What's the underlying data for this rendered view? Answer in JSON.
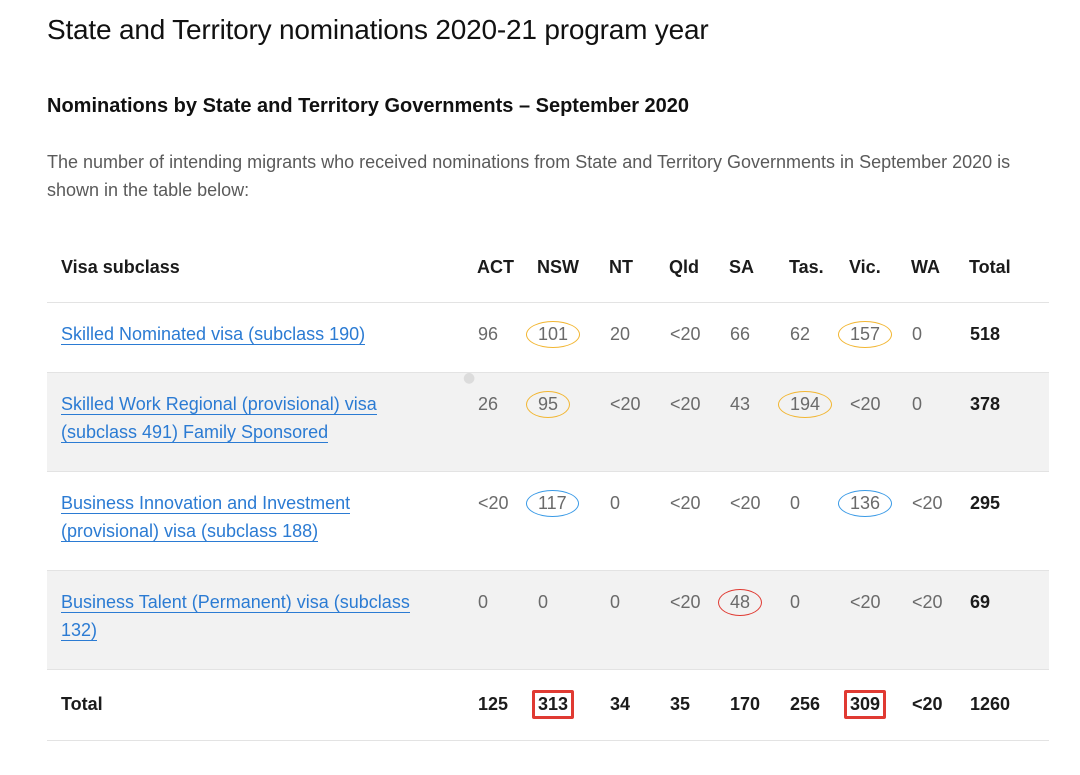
{
  "page_title": "State and Territory nominations 2020-21 program year",
  "section_title": "Nominations by State and Territory Governments – September 2020",
  "intro_text": "The number of intending migrants who received nominations from State and Territory Governments in September 2020 is shown in the table below:",
  "colors": {
    "link": "#2b7bd3",
    "mark_yellow": "#f2b632",
    "mark_blue": "#3a9ae6",
    "mark_red": "#e03a32",
    "row_shade": "#f2f2f2"
  },
  "table": {
    "headers": [
      "Visa subclass",
      "ACT",
      "NSW",
      "NT",
      "Qld",
      "SA",
      "Tas.",
      "Vic.",
      "WA",
      "Total"
    ],
    "rows": [
      {
        "visa": "Skilled Nominated visa (subclass 190)",
        "values": [
          "96",
          "101",
          "20",
          "<20",
          "66",
          "62",
          "157",
          "0"
        ],
        "total": "518",
        "marks": [
          {
            "col": 1,
            "color": "mark_yellow",
            "shape": "oval"
          },
          {
            "col": 6,
            "color": "mark_yellow",
            "shape": "oval"
          }
        ]
      },
      {
        "visa": "Skilled Work Regional (provisional) visa (subclass 491) Family Sponsored",
        "values": [
          "26",
          "95",
          "<20",
          "<20",
          "43",
          "194",
          "<20",
          "0"
        ],
        "total": "378",
        "marks": [
          {
            "col": 1,
            "color": "mark_yellow",
            "shape": "oval"
          },
          {
            "col": 5,
            "color": "mark_yellow",
            "shape": "oval"
          }
        ]
      },
      {
        "visa": "Business Innovation and Investment (provisional) visa (subclass 188)",
        "values": [
          "<20",
          "117",
          "0",
          "<20",
          "<20",
          "0",
          "136",
          "<20"
        ],
        "total": "295",
        "marks": [
          {
            "col": 1,
            "color": "mark_blue",
            "shape": "oval"
          },
          {
            "col": 6,
            "color": "mark_blue",
            "shape": "oval"
          }
        ]
      },
      {
        "visa": "Business Talent (Permanent) visa (subclass 132)",
        "values": [
          "0",
          "0",
          "0",
          "<20",
          "48",
          "0",
          "<20",
          "<20"
        ],
        "total": "69",
        "marks": [
          {
            "col": 4,
            "color": "mark_red",
            "shape": "oval"
          }
        ]
      }
    ],
    "total_row": {
      "label": "Total",
      "values": [
        "125",
        "313",
        "34",
        "35",
        "170",
        "256",
        "309",
        "<20"
      ],
      "total": "1260",
      "marks": [
        {
          "col": 1,
          "color": "mark_red",
          "shape": "rect"
        },
        {
          "col": 6,
          "color": "mark_red",
          "shape": "rect"
        }
      ]
    }
  }
}
